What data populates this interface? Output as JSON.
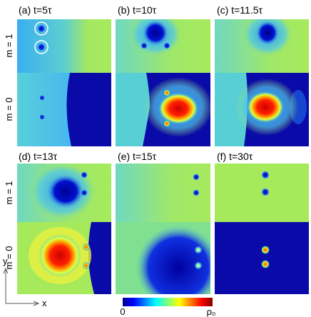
{
  "panels": [
    {
      "label": "(a) t=5τ"
    },
    {
      "label": "(b) t=10τ"
    },
    {
      "label": "(c) t=11.5τ"
    },
    {
      "label": "(d) t=13τ"
    },
    {
      "label": "(e) t=15τ"
    },
    {
      "label": "(f) t=30τ"
    }
  ],
  "row_labels": [
    "m = 1",
    "m = 0"
  ],
  "colorbar": {
    "min_label": "0",
    "max_label": "ρ₀"
  },
  "axes": {
    "y_label": "y",
    "x_label": "x"
  }
}
